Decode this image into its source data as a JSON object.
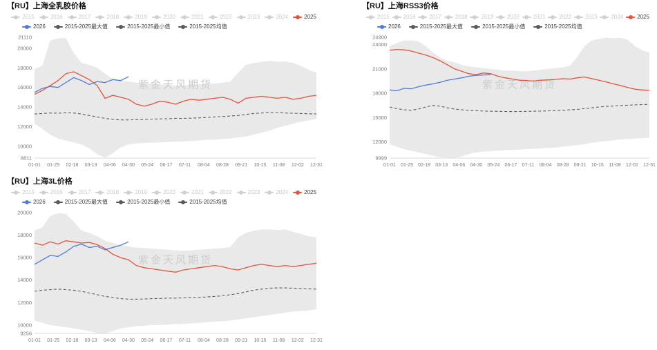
{
  "colors": {
    "c2025": "#e2543b",
    "c2026": "#4f7bd9",
    "mean": "#5c5c5c",
    "band": "#e9e9e9",
    "watermark": "#cdcdcd",
    "inactive": "#c8c8c8",
    "axis_text": "#76797e",
    "title": "#141414"
  },
  "chart_data": [
    {
      "id": "shanghai-quanru",
      "type": "line",
      "title": "【RU】上海全乳胶价格",
      "watermark": "紫金天风期货",
      "legend_row1": [
        {
          "label": "2015",
          "state": "inactive"
        },
        {
          "label": "2016",
          "state": "inactive"
        },
        {
          "label": "2017",
          "state": "inactive"
        },
        {
          "label": "2018",
          "state": "inactive"
        },
        {
          "label": "2019",
          "state": "inactive"
        },
        {
          "label": "2020",
          "state": "inactive"
        },
        {
          "label": "2021",
          "state": "inactive"
        },
        {
          "label": "2022",
          "state": "inactive"
        },
        {
          "label": "2023",
          "state": "inactive"
        },
        {
          "label": "2024",
          "state": "inactive"
        },
        {
          "label": "2025",
          "state": "active-red"
        }
      ],
      "legend_row2": [
        {
          "label": "2026",
          "state": "active-blue"
        },
        {
          "label": "2015-2025最大值",
          "state": "active-dark"
        },
        {
          "label": "2015-2025最小值",
          "state": "active-dark"
        },
        {
          "label": "2015-2025均值",
          "state": "active-dark"
        }
      ],
      "x_ticks": [
        "01-01",
        "01-25",
        "02-18",
        "03-13",
        "04-06",
        "04-30",
        "05-24",
        "06-17",
        "07-11",
        "08-04",
        "08-28",
        "09-21",
        "10-15",
        "11-08",
        "12-02",
        "12-31"
      ],
      "ylim": [
        8811,
        21110
      ],
      "y_ticks": [
        8811,
        10000,
        12000,
        14000,
        16000,
        18000,
        20000,
        21110
      ],
      "series": [
        {
          "name": "2015-2025最大值",
          "role": "max",
          "values": [
            17900,
            18200,
            20800,
            21000,
            21050,
            19500,
            18500,
            18300,
            18000,
            17400,
            16900,
            16700,
            16600,
            16500,
            16400,
            16400,
            16300,
            16300,
            16200,
            16200,
            16300,
            16300,
            16400,
            16400,
            16500,
            16600,
            17500,
            18300,
            18500,
            18600,
            18700,
            18600,
            18650,
            18500,
            18200,
            17800,
            17500
          ]
        },
        {
          "name": "2015-2025最小值",
          "role": "min",
          "values": [
            12300,
            11800,
            11200,
            10800,
            10600,
            10400,
            10200,
            9800,
            9200,
            8850,
            9300,
            9900,
            10200,
            10300,
            10350,
            10400,
            10400,
            10450,
            10500,
            10500,
            10550,
            10600,
            10650,
            10700,
            10750,
            10800,
            10900,
            11000,
            11200,
            11400,
            11600,
            11900,
            12100,
            12300,
            12500,
            12650,
            12800
          ]
        },
        {
          "name": "2015-2025均值",
          "role": "mean",
          "values": [
            13300,
            13350,
            13400,
            13380,
            13420,
            13400,
            13300,
            13150,
            13000,
            12850,
            12750,
            12700,
            12700,
            12720,
            12750,
            12780,
            12800,
            12820,
            12850,
            12850,
            12870,
            12900,
            12950,
            13000,
            13050,
            13100,
            13150,
            13250,
            13350,
            13400,
            13450,
            13450,
            13400,
            13380,
            13350,
            13320,
            13300
          ]
        },
        {
          "name": "2025",
          "role": "line2025",
          "values": [
            15300,
            15700,
            16200,
            16700,
            17400,
            17600,
            17200,
            16800,
            16200,
            14900,
            15200,
            15000,
            14800,
            14300,
            14100,
            14300,
            14600,
            14500,
            14300,
            14600,
            14800,
            14700,
            14800,
            14900,
            15000,
            14800,
            14400,
            14900,
            15000,
            15100,
            15000,
            14900,
            15000,
            14800,
            14900,
            15100,
            15200
          ]
        },
        {
          "name": "2026",
          "role": "line2026",
          "values": [
            15500,
            15900,
            16100,
            16000,
            16500,
            17000,
            16700,
            16300,
            16600,
            16500,
            16800,
            16700,
            17100,
            null,
            null,
            null,
            null,
            null,
            null,
            null,
            null,
            null,
            null,
            null,
            null,
            null,
            null,
            null,
            null,
            null,
            null,
            null,
            null,
            null,
            null,
            null,
            null
          ]
        }
      ]
    },
    {
      "id": "shanghai-rss3",
      "type": "line",
      "title": "【RU】上海RSS3价格",
      "watermark": "紫金天风期货",
      "legend_row1": [
        {
          "label": "2015",
          "state": "inactive"
        },
        {
          "label": "2016",
          "state": "inactive"
        },
        {
          "label": "2017",
          "state": "inactive"
        },
        {
          "label": "2018",
          "state": "inactive"
        },
        {
          "label": "2019",
          "state": "inactive"
        },
        {
          "label": "2020",
          "state": "inactive"
        },
        {
          "label": "2021",
          "state": "inactive"
        },
        {
          "label": "2022",
          "state": "inactive"
        },
        {
          "label": "2023",
          "state": "inactive"
        },
        {
          "label": "2024",
          "state": "inactive"
        },
        {
          "label": "2025",
          "state": "active-red"
        }
      ],
      "legend_row2": [
        {
          "label": "2026",
          "state": "active-blue"
        },
        {
          "label": "2015-2025最大值",
          "state": "active-dark"
        },
        {
          "label": "2015-2025最小值",
          "state": "active-dark"
        },
        {
          "label": "2015-2025均值",
          "state": "active-dark"
        }
      ],
      "x_ticks": [
        "01-01",
        "01-25",
        "02-18",
        "03-13",
        "04-06",
        "04-30",
        "05-24",
        "06-17",
        "07-11",
        "08-04",
        "08-28",
        "09-21",
        "10-15",
        "11-08",
        "12-02",
        "12-31"
      ],
      "ylim": [
        9999,
        24900
      ],
      "y_ticks": [
        9999,
        12000,
        15000,
        18000,
        21000,
        24000,
        24900
      ],
      "series": [
        {
          "name": "2015-2025最大值",
          "role": "max",
          "values": [
            23800,
            24200,
            24500,
            24500,
            24400,
            23800,
            23000,
            22400,
            22000,
            21800,
            21500,
            21300,
            21200,
            21100,
            21000,
            20900,
            20800,
            20800,
            20700,
            20700,
            20800,
            20900,
            21000,
            21100,
            21200,
            21400,
            22500,
            23800,
            24500,
            24700,
            24850,
            24800,
            24850,
            24600,
            23800,
            23300,
            23000
          ]
        },
        {
          "name": "2015-2025最小值",
          "role": "min",
          "values": [
            11700,
            11400,
            11100,
            10900,
            10700,
            10500,
            10300,
            10100,
            10050,
            10050,
            10200,
            10500,
            10700,
            10800,
            10850,
            10900,
            10950,
            11000,
            11050,
            11100,
            11150,
            11200,
            11250,
            11300,
            11400,
            11500,
            11600,
            11700,
            11900,
            12000,
            12100,
            12200,
            12300,
            12350,
            12400,
            12450,
            12500
          ]
        },
        {
          "name": "2015-2025均值",
          "role": "mean",
          "values": [
            16300,
            16100,
            15950,
            15900,
            16050,
            16300,
            16500,
            16400,
            16200,
            16050,
            15950,
            15900,
            15850,
            15800,
            15780,
            15760,
            15750,
            15740,
            15750,
            15760,
            15780,
            15800,
            15820,
            15850,
            15900,
            15950,
            16000,
            16100,
            16200,
            16300,
            16380,
            16420,
            16480,
            16520,
            16560,
            16600,
            16620
          ]
        },
        {
          "name": "2025",
          "role": "line2025",
          "values": [
            23300,
            23400,
            23350,
            23200,
            22950,
            22700,
            22400,
            22000,
            21500,
            21000,
            20700,
            20400,
            20300,
            20500,
            20400,
            20100,
            19900,
            19750,
            19600,
            19550,
            19500,
            19600,
            19650,
            19700,
            19800,
            19750,
            19900,
            20000,
            19800,
            19600,
            19400,
            19150,
            18950,
            18700,
            18500,
            18400,
            18350
          ]
        },
        {
          "name": "2026",
          "role": "line2026",
          "values": [
            18400,
            18300,
            18600,
            18550,
            18800,
            19000,
            19150,
            19350,
            19600,
            19750,
            19900,
            20100,
            20200,
            20250,
            20300,
            null,
            null,
            null,
            null,
            null,
            null,
            null,
            null,
            null,
            null,
            null,
            null,
            null,
            null,
            null,
            null,
            null,
            null,
            null,
            null,
            null,
            null
          ]
        }
      ]
    },
    {
      "id": "shanghai-3l",
      "type": "line",
      "title": "【RU】上海3L价格",
      "watermark": "紫金天风期货",
      "legend_row1": [
        {
          "label": "2015",
          "state": "inactive"
        },
        {
          "label": "2016",
          "state": "inactive"
        },
        {
          "label": "2017",
          "state": "inactive"
        },
        {
          "label": "2018",
          "state": "inactive"
        },
        {
          "label": "2019",
          "state": "inactive"
        },
        {
          "label": "2020",
          "state": "inactive"
        },
        {
          "label": "2021",
          "state": "inactive"
        },
        {
          "label": "2022",
          "state": "inactive"
        },
        {
          "label": "2023",
          "state": "inactive"
        },
        {
          "label": "2024",
          "state": "inactive"
        },
        {
          "label": "2025",
          "state": "active-red"
        }
      ],
      "legend_row2": [
        {
          "label": "2026",
          "state": "active-blue"
        },
        {
          "label": "2015-2025最大值",
          "state": "active-dark"
        },
        {
          "label": "2015-2025最小值",
          "state": "active-dark"
        },
        {
          "label": "2015-2025均值",
          "state": "active-dark"
        }
      ],
      "x_ticks": [
        "01-01",
        "01-25",
        "02-18",
        "03-13",
        "04-06",
        "04-30",
        "05-24",
        "06-17",
        "07-11",
        "08-04",
        "08-28",
        "09-21",
        "10-15",
        "11-08",
        "12-02",
        "12-31"
      ],
      "ylim": [
        9256,
        20000
      ],
      "y_ticks": [
        9256,
        10000,
        12000,
        14000,
        16000,
        18000,
        20000
      ],
      "series": [
        {
          "name": "2015-2025最大值",
          "role": "max",
          "values": [
            18400,
            18700,
            19700,
            19950,
            19900,
            19200,
            18400,
            18200,
            17900,
            17500,
            17300,
            17100,
            17000,
            16900,
            16850,
            16800,
            16750,
            16700,
            16650,
            16600,
            16650,
            16700,
            16750,
            16800,
            16850,
            16950,
            17800,
            18200,
            18400,
            18500,
            18500,
            18450,
            18500,
            18300,
            18100,
            17900,
            17800
          ]
        },
        {
          "name": "2015-2025最小值",
          "role": "min",
          "values": [
            10400,
            10200,
            10000,
            9900,
            9800,
            9700,
            9600,
            9450,
            9300,
            9260,
            9450,
            9700,
            9800,
            9900,
            9950,
            10000,
            10000,
            10050,
            10100,
            10100,
            10150,
            10200,
            10250,
            10300,
            10350,
            10400,
            10500,
            10600,
            10700,
            10800,
            10900,
            11000,
            11100,
            11200,
            11250,
            11300,
            11400
          ]
        },
        {
          "name": "2015-2025均值",
          "role": "mean",
          "values": [
            13000,
            13100,
            13150,
            13200,
            13150,
            13100,
            13000,
            12850,
            12700,
            12550,
            12450,
            12350,
            12300,
            12300,
            12320,
            12350,
            12370,
            12400,
            12400,
            12420,
            12450,
            12470,
            12500,
            12550,
            12600,
            12700,
            12800,
            12950,
            13100,
            13200,
            13280,
            13300,
            13300,
            13280,
            13250,
            13220,
            13200
          ]
        },
        {
          "name": "2025",
          "role": "line2025",
          "values": [
            17300,
            17100,
            17400,
            17200,
            17500,
            17400,
            17300,
            17350,
            17150,
            16800,
            16300,
            16000,
            15800,
            15300,
            15100,
            15000,
            14900,
            14800,
            14700,
            14900,
            15000,
            15100,
            15200,
            15300,
            15200,
            15000,
            14900,
            15100,
            15300,
            15400,
            15300,
            15200,
            15300,
            15200,
            15300,
            15400,
            15500
          ]
        },
        {
          "name": "2026",
          "role": "line2026",
          "values": [
            15400,
            15800,
            16200,
            16100,
            16500,
            17000,
            17200,
            16900,
            17000,
            16700,
            16900,
            17100,
            17400,
            null,
            null,
            null,
            null,
            null,
            null,
            null,
            null,
            null,
            null,
            null,
            null,
            null,
            null,
            null,
            null,
            null,
            null,
            null,
            null,
            null,
            null,
            null,
            null
          ]
        }
      ]
    }
  ]
}
